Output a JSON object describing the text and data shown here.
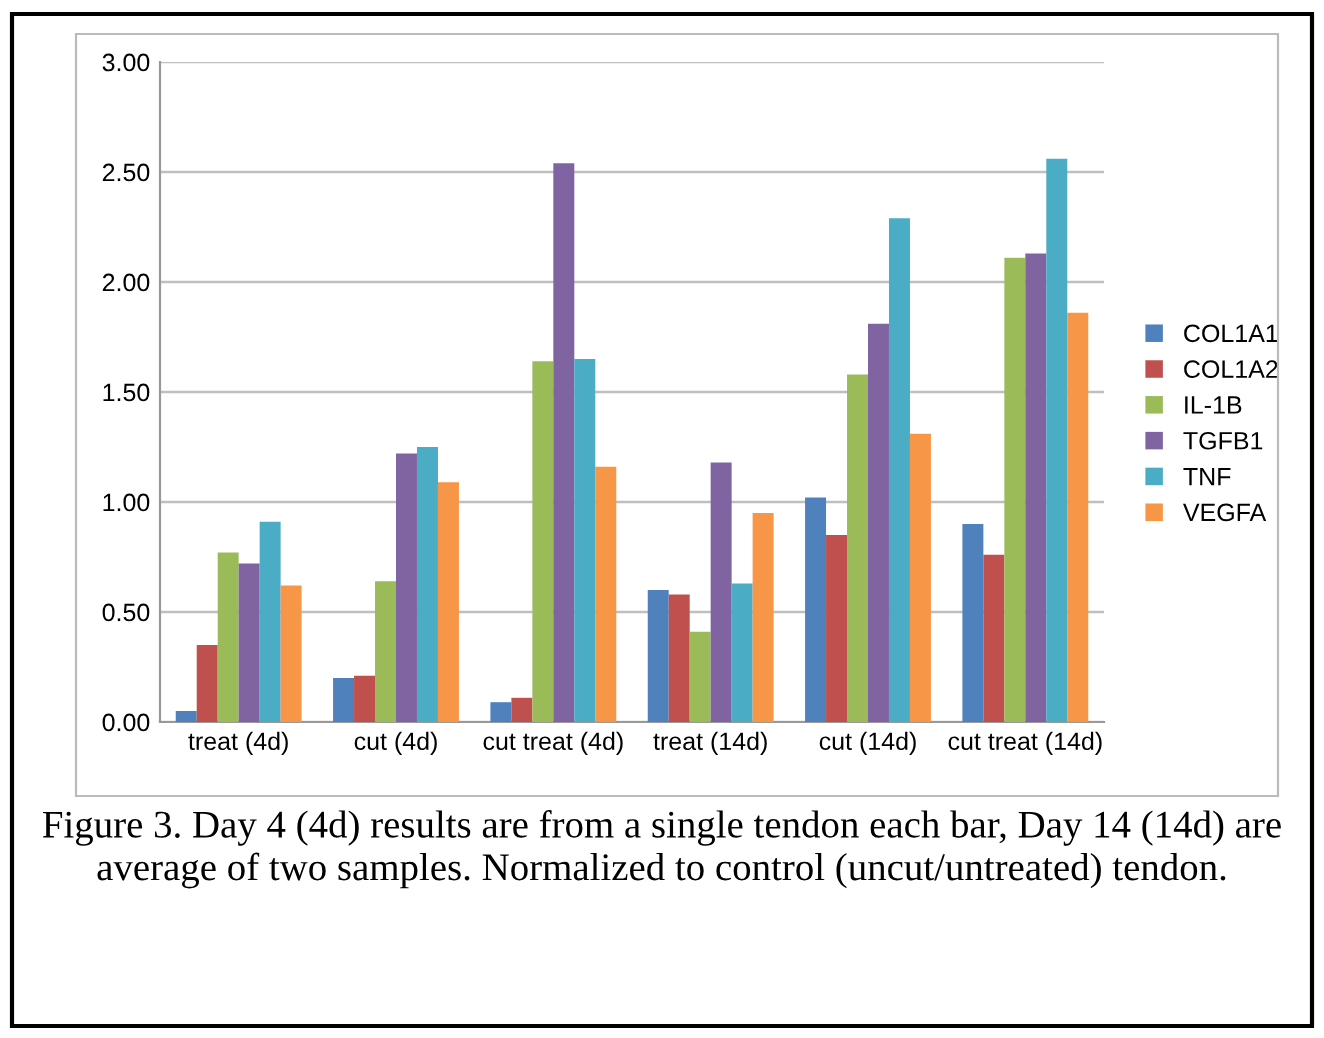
{
  "chart_data": {
    "type": "bar",
    "categories": [
      "treat (4d)",
      "cut (4d)",
      "cut treat (4d)",
      "treat (14d)",
      "cut (14d)",
      "cut treat (14d)"
    ],
    "series": [
      {
        "name": "COL1A1",
        "color": "#4f81bd",
        "values": [
          0.05,
          0.2,
          0.09,
          0.6,
          1.02,
          0.9
        ]
      },
      {
        "name": "COL1A2",
        "color": "#c0504d",
        "values": [
          0.35,
          0.21,
          0.11,
          0.58,
          0.85,
          0.76
        ]
      },
      {
        "name": "IL-1B",
        "color": "#9bbb59",
        "values": [
          0.77,
          0.64,
          1.64,
          0.41,
          1.58,
          2.11
        ]
      },
      {
        "name": "TGFB1",
        "color": "#8064a2",
        "values": [
          0.72,
          1.22,
          2.54,
          1.18,
          1.81,
          2.13
        ]
      },
      {
        "name": "TNF",
        "color": "#4bacc6",
        "values": [
          0.91,
          1.25,
          1.65,
          0.63,
          2.29,
          2.56
        ]
      },
      {
        "name": "VEGFA",
        "color": "#f79646",
        "values": [
          0.62,
          1.09,
          1.16,
          0.95,
          1.31,
          1.86
        ]
      }
    ],
    "ylim": [
      0,
      3
    ],
    "yticks": [
      {
        "value": 0,
        "label": "0.00"
      },
      {
        "value": 0.5,
        "label": "0.50"
      },
      {
        "value": 1,
        "label": "1.00"
      },
      {
        "value": 1.5,
        "label": "1.50"
      },
      {
        "value": 2,
        "label": "2.00"
      },
      {
        "value": 2.5,
        "label": "2.50"
      },
      {
        "value": 3,
        "label": "3.00"
      }
    ],
    "grid": "y",
    "legend": "right",
    "annotations": [
      "Figure 3. Day 4 (4d) results are from a single tendon each bar, Day 14 (14d) are average of two samples. Normalized to control (uncut/untreated) tendon."
    ]
  }
}
